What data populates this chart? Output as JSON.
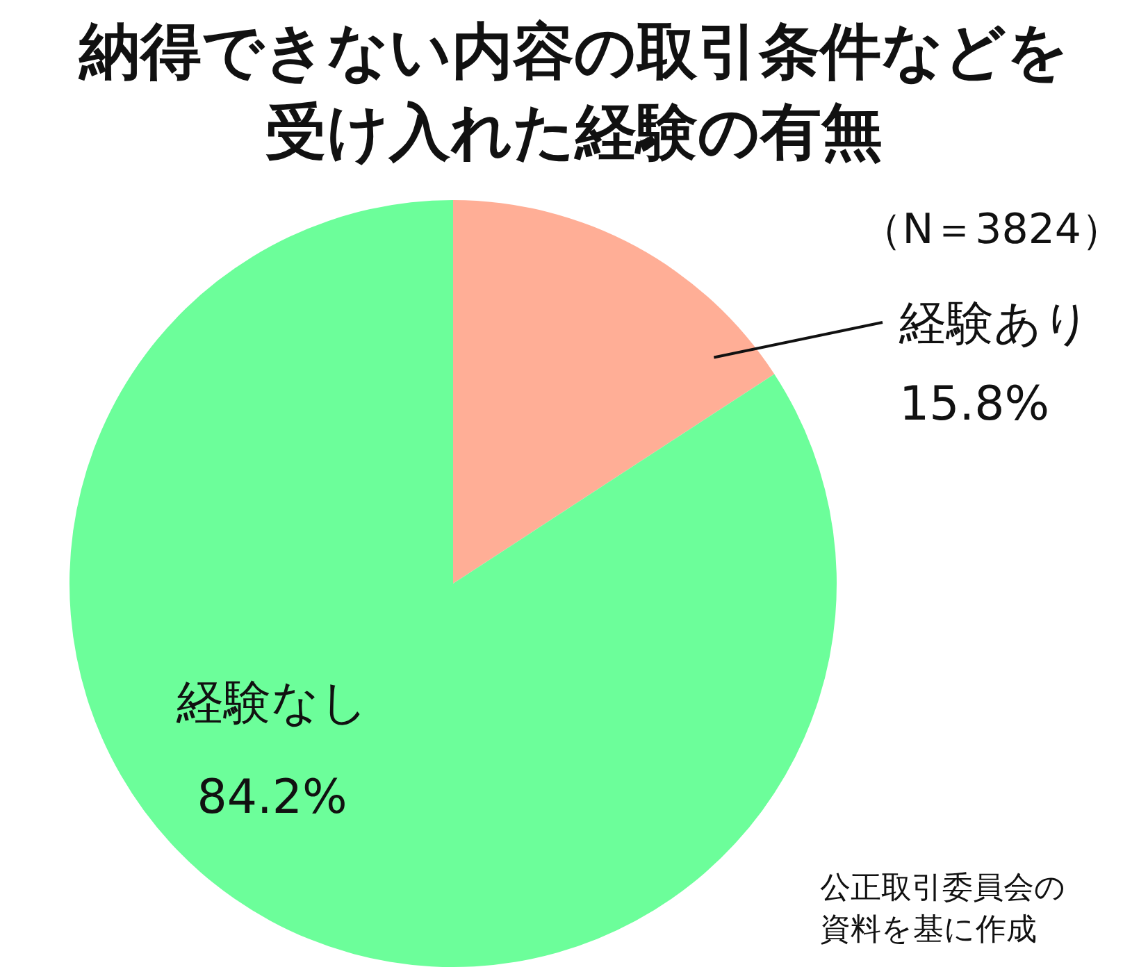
{
  "chart_data": {
    "type": "pie",
    "title": "納得できない内容の取引条件などを受け入れた経験の有無",
    "subtitle": "（N＝3824）",
    "categories": [
      "経験あり",
      "経験なし"
    ],
    "values": [
      15.8,
      84.2
    ],
    "value_labels": [
      "15.8%",
      "84.2%"
    ],
    "colors": [
      "#ffae96",
      "#6cfe9a"
    ],
    "annotations": [
      "公正取引委員会の資料を基に作成"
    ]
  }
}
